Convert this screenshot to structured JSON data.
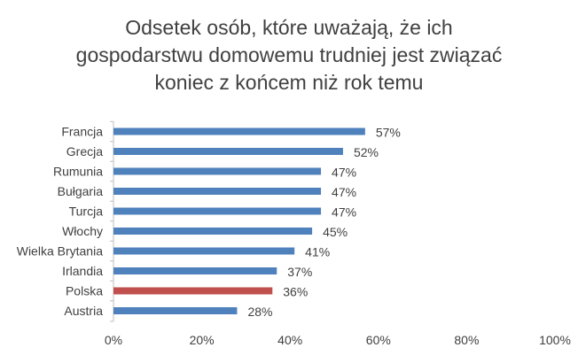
{
  "chart_data": {
    "type": "bar",
    "orientation": "horizontal",
    "title_lines": [
      "Odsetek osób, które uważają, że ich",
      "gospodarstwu domowemu trudniej jest związać",
      "koniec z końcem niż rok temu"
    ],
    "categories": [
      "Francja",
      "Grecja",
      "Rumunia",
      "Bułgaria",
      "Turcja",
      "Włochy",
      "Wielka Brytania",
      "Irlandia",
      "Polska",
      "Austria"
    ],
    "values": [
      57,
      52,
      47,
      47,
      47,
      45,
      41,
      37,
      36,
      28
    ],
    "value_labels": [
      "57%",
      "52%",
      "47%",
      "47%",
      "47%",
      "45%",
      "41%",
      "37%",
      "36%",
      "28%"
    ],
    "bar_colors": [
      "#4f81bd",
      "#4f81bd",
      "#4f81bd",
      "#4f81bd",
      "#4f81bd",
      "#4f81bd",
      "#4f81bd",
      "#4f81bd",
      "#c0504d",
      "#4f81bd"
    ],
    "xlim": [
      0,
      100
    ],
    "xticks": [
      0,
      20,
      40,
      60,
      80,
      100
    ],
    "xtick_labels": [
      "0%",
      "20%",
      "40%",
      "60%",
      "80%",
      "100%"
    ],
    "xlabel": "",
    "ylabel": "",
    "grid": false,
    "legend": "none",
    "colors": {
      "default_bar": "#4f81bd",
      "highlight_bar": "#c0504d",
      "text": "#404040",
      "axis": "#bfbfbf"
    }
  }
}
